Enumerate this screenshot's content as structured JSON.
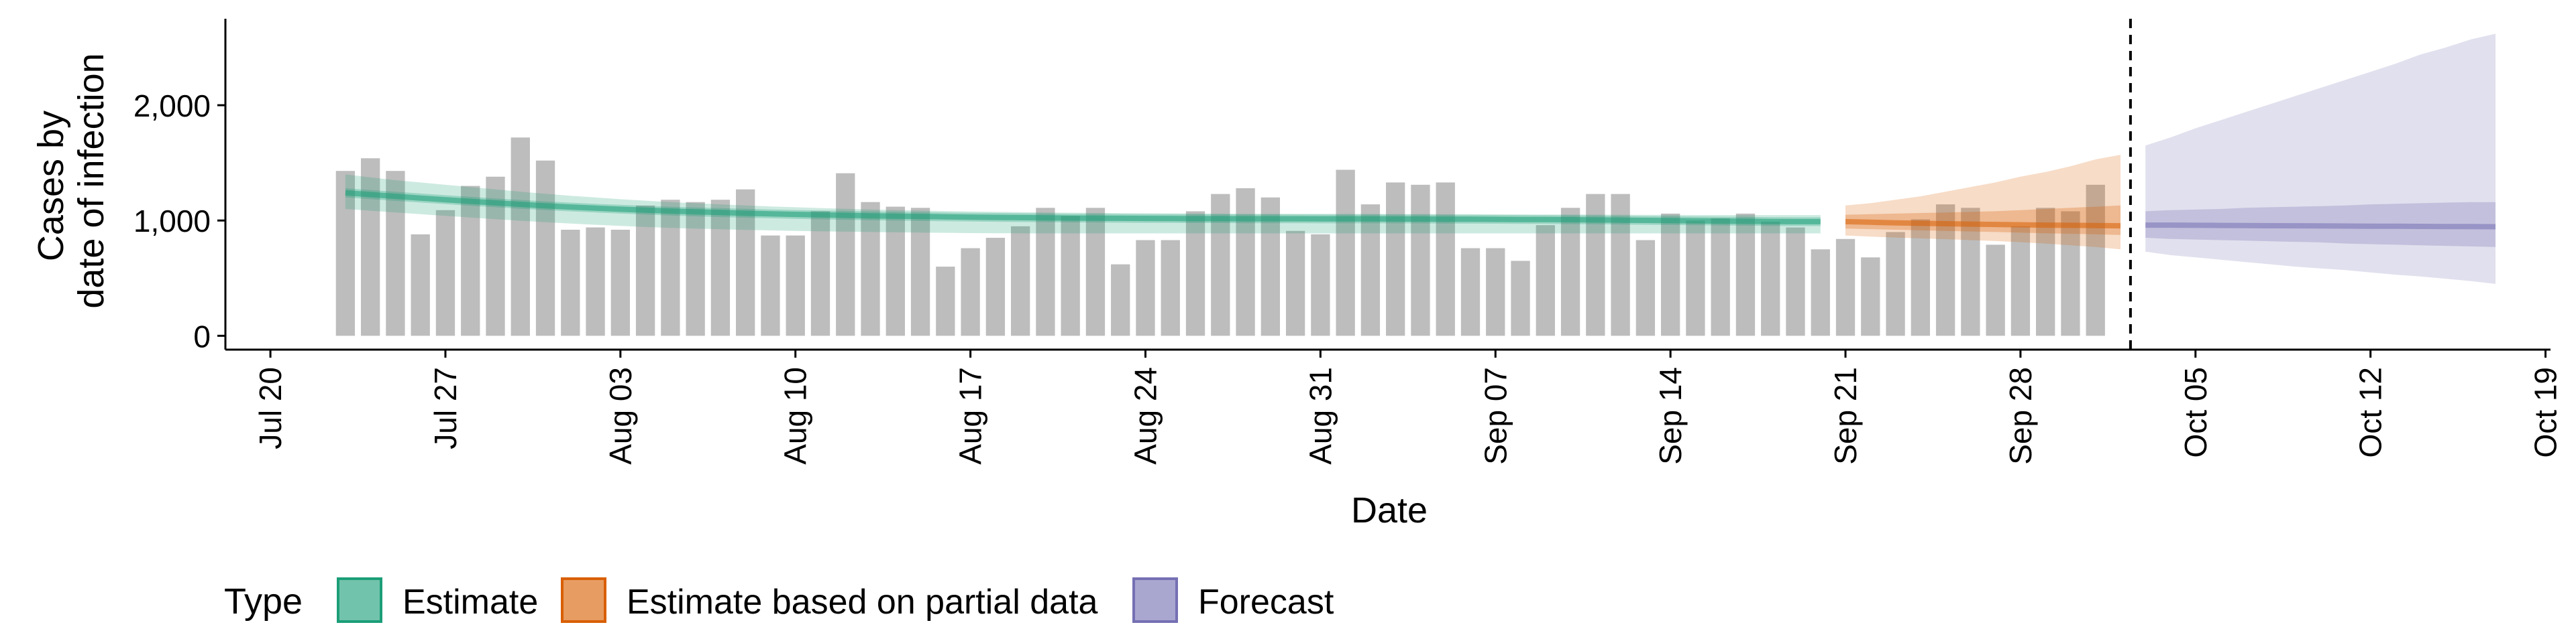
{
  "chart_data": {
    "type": "bar",
    "title": "",
    "xlabel": "Date",
    "ylabel_lines": [
      "Cases by",
      "date of infection"
    ],
    "y_ticks": [
      0,
      1000,
      2000
    ],
    "y_tick_labels": [
      "0",
      "1,000",
      "2,000"
    ],
    "ylim": [
      -120,
      2750
    ],
    "x_tick_labels": [
      "Jul 20",
      "Jul 27",
      "Aug 03",
      "Aug 10",
      "Aug 17",
      "Aug 24",
      "Aug 31",
      "Sep 07",
      "Sep 14",
      "Sep 21",
      "Sep 28",
      "Oct 05",
      "Oct 12",
      "Oct 19"
    ],
    "x_tick_days": [
      0,
      7,
      14,
      21,
      28,
      35,
      42,
      49,
      56,
      63,
      70,
      77,
      84,
      91
    ],
    "xlim_days": [
      -1.8,
      91.2
    ],
    "forecast_start_day": 74.4,
    "bar_start_day": 3,
    "bars": [
      1430,
      1540,
      1430,
      880,
      1090,
      1300,
      1380,
      1720,
      1520,
      920,
      940,
      920,
      1130,
      1180,
      1160,
      1180,
      1270,
      870,
      870,
      1080,
      1410,
      1160,
      1120,
      1110,
      600,
      760,
      850,
      950,
      1110,
      1040,
      1110,
      620,
      830,
      830,
      1080,
      1230,
      1280,
      1200,
      910,
      880,
      1440,
      1140,
      1330,
      1310,
      1330,
      760,
      760,
      650,
      960,
      1110,
      1230,
      1230,
      830,
      1060,
      1000,
      1020,
      1060,
      990,
      940,
      750,
      840,
      680,
      900,
      1010,
      1140,
      1110,
      790,
      950,
      1110,
      1080,
      1310
    ],
    "estimate": {
      "name": "Estimate",
      "start_day": 3,
      "median": [
        1240,
        1225,
        1210,
        1195,
        1180,
        1166,
        1153,
        1140,
        1128,
        1117,
        1107,
        1098,
        1090,
        1082,
        1075,
        1069,
        1063,
        1058,
        1053,
        1049,
        1045,
        1041,
        1038,
        1035,
        1032,
        1029,
        1027,
        1025,
        1023,
        1021,
        1020,
        1019,
        1018,
        1017,
        1016,
        1016,
        1015,
        1015,
        1015,
        1014,
        1014,
        1014,
        1013,
        1013,
        1012,
        1011,
        1010,
        1009,
        1008,
        1007,
        1005,
        1003,
        1001,
        999,
        997,
        995,
        993,
        991,
        990,
        990
      ],
      "lower_90": [
        1100,
        1085,
        1070,
        1055,
        1040,
        1026,
        1012,
        998,
        985,
        974,
        963,
        953,
        944,
        936,
        930,
        924,
        919,
        914,
        910,
        906,
        903,
        900,
        897,
        895,
        893,
        891,
        890,
        889,
        888,
        888,
        888,
        888,
        888,
        888,
        888,
        888,
        888,
        888,
        888,
        888,
        888,
        888,
        888,
        888,
        888,
        888,
        888,
        888,
        888,
        888,
        888,
        888,
        888,
        888,
        888,
        888,
        888,
        888,
        888,
        888
      ],
      "upper_90": [
        1400,
        1375,
        1350,
        1330,
        1310,
        1290,
        1270,
        1250,
        1232,
        1215,
        1200,
        1185,
        1172,
        1160,
        1150,
        1140,
        1131,
        1122,
        1115,
        1108,
        1102,
        1096,
        1091,
        1086,
        1082,
        1078,
        1075,
        1072,
        1070,
        1068,
        1066,
        1064,
        1063,
        1062,
        1061,
        1060,
        1059,
        1059,
        1058,
        1058,
        1057,
        1057,
        1056,
        1056,
        1055,
        1055,
        1054,
        1053,
        1052,
        1052,
        1051,
        1050,
        1049,
        1049,
        1048,
        1048,
        1047,
        1047,
        1047,
        1047
      ],
      "lower_50": [
        1200,
        1185,
        1170,
        1156,
        1142,
        1128,
        1115,
        1102,
        1090,
        1079,
        1069,
        1060,
        1051,
        1043,
        1036,
        1030,
        1024,
        1019,
        1014,
        1010,
        1006,
        1002,
        999,
        996,
        993,
        991,
        989,
        987,
        985,
        983,
        982,
        981,
        980,
        979,
        978,
        978,
        977,
        977,
        977,
        976,
        976,
        976,
        975,
        975,
        974,
        973,
        972,
        971,
        970,
        969,
        967,
        965,
        963,
        961,
        959,
        957,
        955,
        953,
        952,
        952
      ],
      "upper_50": [
        1280,
        1265,
        1250,
        1235,
        1220,
        1206,
        1192,
        1179,
        1166,
        1155,
        1145,
        1136,
        1128,
        1120,
        1113,
        1107,
        1101,
        1096,
        1091,
        1087,
        1083,
        1079,
        1076,
        1073,
        1070,
        1067,
        1065,
        1063,
        1061,
        1059,
        1058,
        1057,
        1056,
        1055,
        1054,
        1054,
        1053,
        1053,
        1053,
        1052,
        1052,
        1052,
        1051,
        1051,
        1050,
        1049,
        1048,
        1047,
        1046,
        1045,
        1043,
        1041,
        1039,
        1037,
        1035,
        1033,
        1031,
        1029,
        1028,
        1028
      ]
    },
    "partial": {
      "name": "Estimate based on partial data",
      "start_day": 63,
      "median": [
        990,
        985,
        980,
        976,
        972,
        969,
        966,
        963,
        960,
        958,
        956,
        954
      ],
      "lower_90": [
        870,
        860,
        852,
        845,
        838,
        830,
        822,
        812,
        800,
        785,
        770,
        750
      ],
      "upper_90": [
        1130,
        1150,
        1180,
        1210,
        1250,
        1290,
        1330,
        1380,
        1420,
        1470,
        1530,
        1570
      ],
      "lower_50": [
        930,
        925,
        920,
        915,
        910,
        905,
        900,
        895,
        890,
        885,
        880,
        875
      ],
      "upper_50": [
        1050,
        1055,
        1060,
        1065,
        1070,
        1075,
        1080,
        1090,
        1100,
        1110,
        1120,
        1130
      ]
    },
    "forecast": {
      "name": "Forecast",
      "start_day": 75,
      "median": [
        960,
        960,
        958,
        957,
        956,
        955,
        954,
        953,
        952,
        951,
        950,
        949,
        948,
        947,
        946
      ],
      "lower_90": [
        730,
        700,
        680,
        660,
        640,
        620,
        600,
        585,
        570,
        550,
        530,
        515,
        495,
        475,
        450
      ],
      "upper_90": [
        1650,
        1720,
        1800,
        1870,
        1940,
        2010,
        2080,
        2150,
        2220,
        2290,
        2360,
        2440,
        2500,
        2570,
        2620
      ],
      "lower_50": [
        850,
        840,
        835,
        830,
        825,
        820,
        815,
        810,
        800,
        795,
        790,
        785,
        780,
        775,
        770
      ],
      "upper_50": [
        1080,
        1090,
        1095,
        1100,
        1110,
        1115,
        1120,
        1125,
        1130,
        1140,
        1145,
        1150,
        1155,
        1160,
        1160
      ]
    },
    "colors": {
      "bars": "#bdbdbd",
      "estimate": "#1b9e77",
      "partial": "#d95f02",
      "forecast": "#7570b3"
    },
    "legend": {
      "title": "Type",
      "placement": "bottom-left",
      "items": [
        "Estimate",
        "Estimate based on partial data",
        "Forecast"
      ]
    }
  }
}
